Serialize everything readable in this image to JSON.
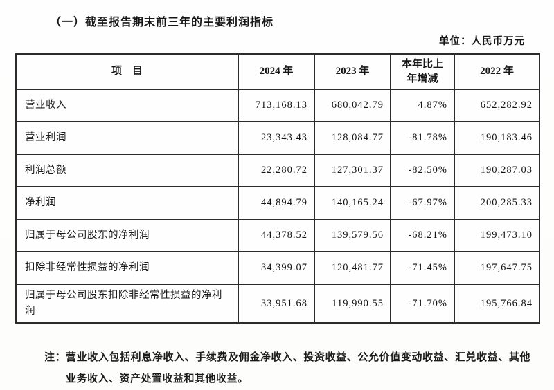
{
  "page": {
    "title": "（一）截至报告期末前三年的主要利润指标",
    "unit_label": "单位：人民币万元"
  },
  "table": {
    "headers": {
      "item": "项　目",
      "y2024": "2024 年",
      "y2023": "2023 年",
      "change_line1": "本年比上",
      "change_line2": "年增减",
      "y2022": "2022 年"
    },
    "rows": [
      {
        "item": "营业收入",
        "y2024": "713,168.13",
        "y2023": "680,042.79",
        "change": "4.87%",
        "y2022": "652,282.92"
      },
      {
        "item": "营业利润",
        "y2024": "23,343.43",
        "y2023": "128,084.77",
        "change": "-81.78%",
        "y2022": "190,183.46"
      },
      {
        "item": "利润总额",
        "y2024": "22,280.72",
        "y2023": "127,301.37",
        "change": "-82.50%",
        "y2022": "190,287.03"
      },
      {
        "item": "净利润",
        "y2024": "44,894.79",
        "y2023": "140,165.24",
        "change": "-67.97%",
        "y2022": "200,285.33"
      },
      {
        "item": "归属于母公司股东的净利润",
        "y2024": "44,378.52",
        "y2023": "139,579.56",
        "change": "-68.21%",
        "y2022": "199,473.10"
      },
      {
        "item": "扣除非经常性损益的净利润",
        "y2024": "34,399.07",
        "y2023": "120,481.77",
        "change": "-71.45%",
        "y2022": "197,647.75"
      },
      {
        "item": "归属于母公司股东扣除非经常性损益的净利润",
        "y2024": "33,951.68",
        "y2023": "119,990.55",
        "change": "-71.70%",
        "y2022": "195,766.84"
      }
    ]
  },
  "footnote": {
    "label": "注：",
    "text": "营业收入包括利息净收入、手续费及佣金净收入、投资收益、公允价值变动收益、汇兑收益、其他业务收入、资产处置收益和其他收益。"
  }
}
